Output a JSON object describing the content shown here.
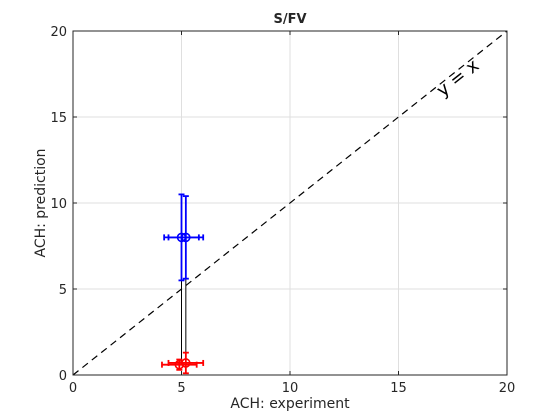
{
  "chart_data": {
    "type": "scatter",
    "title": "S/FV",
    "xlabel": "ACH: experiment",
    "ylabel": "ACH: prediction",
    "xlim": [
      0,
      20
    ],
    "ylim": [
      0,
      20
    ],
    "xticks": [
      0,
      5,
      10,
      15,
      20
    ],
    "yticks": [
      0,
      5,
      10,
      15,
      20
    ],
    "grid": true,
    "annotation": "y = x",
    "reference_line": {
      "from": [
        0,
        0
      ],
      "to": [
        20,
        20
      ],
      "style": "dashed",
      "color": "#000000"
    },
    "series": [
      {
        "color": "#0000ff",
        "points": [
          {
            "x": 5.0,
            "y": 8.0,
            "xerr": 0.8,
            "yerr": 2.5
          },
          {
            "x": 5.2,
            "y": 8.0,
            "xerr": 0.8,
            "yerr": 2.4
          }
        ]
      },
      {
        "color": "#ff0000",
        "points": [
          {
            "x": 4.9,
            "y": 0.6,
            "xerr": 0.8,
            "yerr": 0.3
          },
          {
            "x": 5.2,
            "y": 0.7,
            "xerr": 0.8,
            "yerr": 0.6
          }
        ]
      }
    ],
    "connectors": [
      {
        "x": 5.0,
        "y_from": 0.6,
        "y_to": 8.0
      },
      {
        "x": 5.2,
        "y_from": 0.7,
        "y_to": 8.0
      }
    ]
  }
}
